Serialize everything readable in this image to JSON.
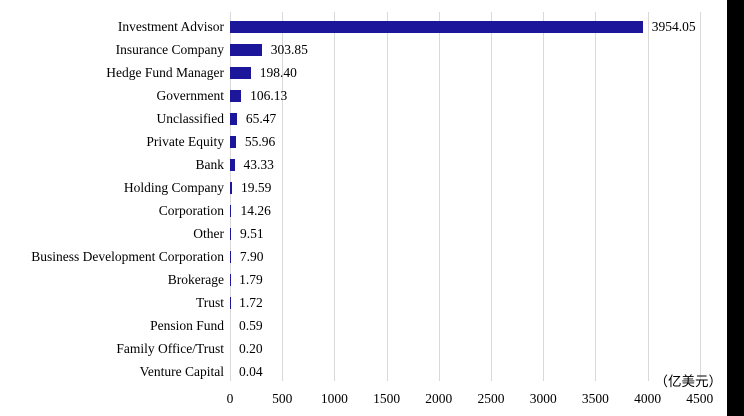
{
  "chart_data": {
    "type": "bar",
    "orientation": "horizontal",
    "title": "",
    "xlabel": "（亿美元）",
    "ylabel": "",
    "categories": [
      "Investment Advisor",
      "Insurance Company",
      "Hedge Fund Manager",
      "Government",
      "Unclassified",
      "Private Equity",
      "Bank",
      "Holding Company",
      "Corporation",
      "Other",
      "Business Development Corporation",
      "Brokerage",
      "Trust",
      "Pension Fund",
      "Family Office/Trust",
      "Venture Capital"
    ],
    "values": [
      3954.05,
      303.85,
      198.4,
      106.13,
      65.47,
      55.96,
      43.33,
      19.59,
      14.26,
      9.51,
      7.9,
      1.79,
      1.72,
      0.59,
      0.2,
      0.04
    ],
    "value_labels": [
      "3954.05",
      "303.85",
      "198.40",
      "106.13",
      "65.47",
      "55.96",
      "43.33",
      "19.59",
      "14.26",
      "9.51",
      "7.90",
      "1.79",
      "1.72",
      "0.59",
      "0.20",
      "0.04"
    ],
    "x_ticks": [
      "0",
      "500",
      "1000",
      "1500",
      "2000",
      "2500",
      "3000",
      "3500",
      "4000",
      "4500"
    ],
    "xlim": [
      0,
      4500
    ],
    "grid": "vertical",
    "legend": "none",
    "bar_color": "#1c169a",
    "gridline_color": "#d9d9d9",
    "text_color": "#000000",
    "background_color": "#ffffff"
  }
}
